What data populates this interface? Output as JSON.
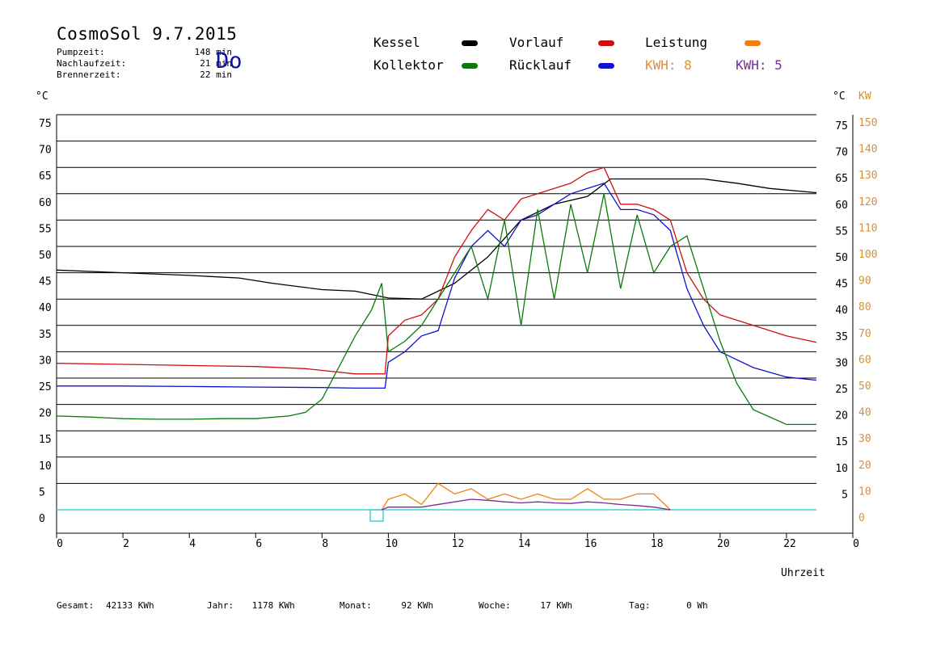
{
  "header": {
    "title": "CosmoSol 9.7.2015",
    "day": "Do",
    "stats": [
      {
        "label": "Pumpzeit:",
        "value": "148 min"
      },
      {
        "label": "Nachlaufzeit:",
        "value": "21 min"
      },
      {
        "label": "Brennerzeit:",
        "value": "22 min"
      }
    ]
  },
  "legend": {
    "kessel": "Kessel",
    "kollektor": "Kollektor",
    "vorlauf": "Vorlauf",
    "ruecklauf": "Rücklauf",
    "leistung": "Leistung",
    "kwh1": "KWH: 8",
    "kwh2": "KWH: 5"
  },
  "colors": {
    "kessel": "#000000",
    "kollektor": "#0a7a0a",
    "vorlauf": "#d01010",
    "ruecklauf": "#1010d0",
    "leistung": "#f08010",
    "kwh2": "#7a2a9a",
    "orange_axis": "#d89030",
    "baseline": "#40d0d0"
  },
  "footer": {
    "gesamt_label": "Gesamt:",
    "gesamt_value": "42133 KWh",
    "jahr_label": "Jahr:",
    "jahr_value": "1178 KWh",
    "monat_label": "Monat:",
    "monat_value": "92 KWh",
    "woche_label": "Woche:",
    "woche_value": "17 KWh",
    "tag_label": "Tag:",
    "tag_value": "0 Wh"
  },
  "chart_data": {
    "type": "line",
    "title": "CosmoSol 9.7.2015",
    "xlabel": "Uhrzeit",
    "ylabel_left": "°C",
    "ylabel_right": "°C",
    "ylabel_right2": "KW",
    "xlim": [
      0,
      24
    ],
    "ylim": [
      0,
      75
    ],
    "x_ticks": [
      "0",
      "2",
      "4",
      "6",
      "8",
      "10",
      "12",
      "14",
      "16",
      "18",
      "20",
      "22",
      "0"
    ],
    "y_ticks_left": [
      "75",
      "70",
      "65",
      "60",
      "55",
      "50",
      "45",
      "40",
      "35",
      "30",
      "25",
      "20",
      "15",
      "10",
      "5",
      "0"
    ],
    "y_ticks_right": [
      "75",
      "70",
      "65",
      "60",
      "55",
      "50",
      "45",
      "40",
      "35",
      "30",
      "25",
      "20",
      "15",
      "10",
      "5"
    ],
    "y_ticks_right_kw": [
      "150",
      "140",
      "130",
      "120",
      "110",
      "100",
      "90",
      "80",
      "70",
      "60",
      "50",
      "40",
      "30",
      "20",
      "10",
      "0"
    ],
    "grid": true,
    "series": [
      {
        "name": "Kessel",
        "x": [
          0,
          2,
          4,
          5.5,
          6.5,
          8,
          9,
          10,
          11,
          12,
          13,
          14,
          15,
          16,
          16.7,
          17.5,
          18.5,
          19.5,
          20.5,
          21.5,
          22.9
        ],
        "y": [
          45.5,
          45,
          44.5,
          44,
          43,
          41.8,
          41.5,
          40.2,
          40,
          43,
          48,
          55,
          58,
          59.5,
          62.8,
          62.8,
          62.8,
          62.8,
          62,
          61,
          60.2
        ]
      },
      {
        "name": "Vorlauf",
        "x": [
          0,
          2,
          4,
          6,
          7.5,
          9,
          9.9,
          10,
          10.5,
          11,
          11.5,
          12,
          12.5,
          13,
          13.5,
          14,
          14.5,
          15,
          15.5,
          16,
          16.5,
          17,
          17.5,
          18,
          18.5,
          19,
          19.5,
          20,
          21,
          22,
          22.9
        ],
        "y": [
          27.8,
          27.6,
          27.4,
          27.2,
          26.8,
          25.8,
          25.8,
          33,
          36,
          37,
          40,
          48,
          53,
          57,
          55,
          59,
          60,
          61,
          62,
          64,
          65,
          58,
          58,
          57,
          55,
          45,
          40,
          37,
          35,
          33,
          31.8
        ]
      },
      {
        "name": "Rücklauf",
        "x": [
          0,
          2,
          4,
          6,
          8,
          9,
          9.9,
          10,
          10.5,
          11,
          11.5,
          12,
          12.5,
          13,
          13.5,
          14,
          14.5,
          15,
          15.5,
          16,
          16.5,
          17,
          17.5,
          18,
          18.5,
          19,
          19.5,
          20,
          21,
          22,
          22.9
        ],
        "y": [
          23.5,
          23.5,
          23.4,
          23.3,
          23.2,
          23.1,
          23.1,
          28,
          30,
          33,
          34,
          44,
          50,
          53,
          50,
          55,
          56,
          58,
          60,
          61,
          62,
          57,
          57,
          56,
          53,
          42,
          35,
          30,
          27,
          25.2,
          24.6
        ]
      },
      {
        "name": "Kollektor",
        "x": [
          0,
          1,
          2,
          3,
          4,
          5,
          6,
          7,
          7.5,
          8,
          8.5,
          9,
          9.5,
          9.8,
          10,
          10.5,
          11,
          11.5,
          12,
          12.5,
          13,
          13.5,
          14,
          14.5,
          15,
          15.5,
          16,
          16.5,
          17,
          17.5,
          18,
          18.5,
          19,
          19.5,
          20,
          20.5,
          21,
          22,
          22.9
        ],
        "y": [
          17.8,
          17.6,
          17.3,
          17.2,
          17.2,
          17.3,
          17.3,
          17.8,
          18.5,
          21,
          27,
          33,
          38,
          43,
          30,
          32,
          35,
          40,
          45,
          50,
          40,
          55,
          35,
          57,
          40,
          58,
          45,
          60,
          42,
          56,
          45,
          50,
          52,
          42,
          32,
          24,
          19,
          16.2,
          16.2
        ]
      },
      {
        "name": "Leistung",
        "x": [
          9.8,
          10,
          10.5,
          11,
          11.5,
          12,
          12.5,
          13,
          13.5,
          14,
          14.5,
          15,
          15.5,
          16,
          16.5,
          17,
          17.5,
          18,
          18.5
        ],
        "y": [
          0,
          2,
          3,
          1,
          5,
          3,
          4,
          2,
          3,
          2,
          3,
          2,
          2,
          4,
          2,
          2,
          3,
          3,
          0
        ]
      },
      {
        "name": "KWH: 5",
        "x": [
          9.8,
          10,
          11,
          12,
          12.5,
          13,
          13.5,
          14,
          14.5,
          15,
          15.5,
          16,
          16.5,
          17,
          17.5,
          18,
          18.5
        ],
        "y": [
          0,
          0.5,
          0.5,
          1.5,
          2,
          1.8,
          1.5,
          1.3,
          1.5,
          1.3,
          1.2,
          1.5,
          1.3,
          1.0,
          0.8,
          0.5,
          0
        ]
      }
    ]
  }
}
